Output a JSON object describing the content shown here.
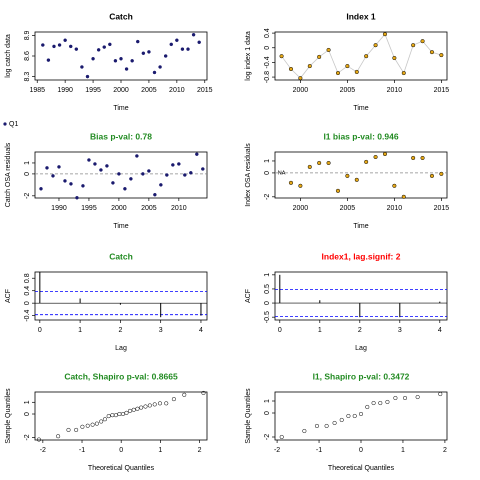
{
  "chart_data": [
    {
      "type": "line",
      "title": "Catch",
      "title_color": "#000000",
      "xlabel": "Time",
      "ylabel": "log catch data",
      "x": [
        1986,
        1987,
        1988,
        1989,
        1990,
        1991,
        1992,
        1993,
        1994,
        1995,
        1996,
        1997,
        1998,
        1999,
        2000,
        2001,
        2002,
        2003,
        2004,
        2005,
        2006,
        2007,
        2008,
        2009,
        2010,
        2011,
        2012,
        2013,
        2014
      ],
      "series": [
        {
          "values": [
            8.76,
            8.54,
            8.74,
            8.76,
            8.83,
            8.74,
            8.7,
            8.44,
            8.3,
            8.56,
            8.69,
            8.73,
            8.77,
            8.53,
            8.56,
            8.41,
            8.53,
            8.81,
            8.64,
            8.66,
            8.36,
            8.44,
            8.6,
            8.77,
            8.83,
            8.7,
            8.7,
            8.91,
            8.8
          ],
          "color": "#1a1a6e",
          "connect": false,
          "open": false
        }
      ],
      "xlim": [
        1984.6,
        2015.4
      ],
      "ylim": [
        8.25,
        8.95
      ],
      "xticks": [
        1985,
        1990,
        1995,
        2000,
        2005,
        2010,
        2015
      ],
      "yticks": [
        8.3,
        8.6,
        8.9
      ]
    },
    {
      "type": "line",
      "title": "Index 1",
      "title_color": "#000000",
      "xlabel": "Time",
      "ylabel": "log index 1 data",
      "x": [
        1998,
        1999,
        2000,
        2001,
        2002,
        2003,
        2004,
        2005,
        2006,
        2007,
        2008,
        2009,
        2010,
        2011,
        2012,
        2013,
        2014,
        2015
      ],
      "series": [
        {
          "values": [
            -0.23,
            -0.58,
            -0.83,
            -0.5,
            -0.25,
            -0.06,
            -0.69,
            -0.5,
            -0.66,
            -0.23,
            0.07,
            0.37,
            -0.28,
            -0.69,
            0.07,
            0.18,
            -0.12,
            -0.2
          ],
          "color": "#e6a817",
          "connect": true,
          "open": true
        }
      ],
      "xlim": [
        1997.3,
        2015.6
      ],
      "ylim": [
        -0.88,
        0.43
      ],
      "xticks": [
        2000,
        2005,
        2010,
        2015
      ],
      "yticks": [
        0.4,
        0,
        -0.4,
        -0.8
      ]
    },
    {
      "type": "line",
      "title": "Bias p-val: 0.78",
      "title_color": "#228b22",
      "xlabel": "Time",
      "ylabel": "Catch OSA residuals",
      "legend": "outside-top-left",
      "hline": 0,
      "x": [
        1987,
        1988,
        1989,
        1990,
        1991,
        1992,
        1993,
        1994,
        1995,
        1996,
        1997,
        1998,
        1999,
        2000,
        2001,
        2002,
        2003,
        2004,
        2005,
        2006,
        2007,
        2008,
        2009,
        2010,
        2011,
        2012,
        2013,
        2014
      ],
      "series": [
        {
          "name": "Q1",
          "values": [
            -1.36,
            0.55,
            -0.18,
            0.64,
            -0.64,
            -0.91,
            -2.18,
            -1.09,
            1.27,
            0.91,
            0.36,
            0.73,
            -0.82,
            0,
            -1.36,
            -0.45,
            1.64,
            0,
            0.27,
            -1.9,
            -1,
            -0.1,
            0.82,
            0.91,
            -0.1,
            0.1,
            1.8,
            0.45
          ],
          "color": "#1a1a6e",
          "connect": false,
          "open": false
        }
      ],
      "xlim": [
        1986,
        2014.7
      ],
      "ylim": [
        -2.2,
        2.0
      ],
      "xticks": [
        1990,
        1995,
        2000,
        2005,
        2010
      ],
      "yticks": [
        1,
        0,
        -2
      ]
    },
    {
      "type": "line",
      "title": "I1 bias p-val: 0.946",
      "title_color": "#228b22",
      "xlabel": "Time",
      "ylabel": "Index OSA residuals",
      "hline": 0,
      "annotations": [
        {
          "text": "NA",
          "x": 1998,
          "y": 0
        }
      ],
      "x": [
        1998,
        1999,
        2000,
        2001,
        2002,
        2003,
        2004,
        2005,
        2006,
        2007,
        2008,
        2009,
        2010,
        2011,
        2012,
        2013,
        2014,
        2015
      ],
      "series": [
        {
          "values": [
            null,
            -0.83,
            -1.08,
            0.5,
            0.83,
            0.83,
            -1.5,
            -0.25,
            -0.58,
            0.92,
            1.33,
            1.58,
            -1.08,
            -2,
            1.25,
            1.25,
            -0.25,
            -0.08
          ],
          "color": "#e6a817",
          "connect": false,
          "open": true
        }
      ],
      "xlim": [
        1997.3,
        2015.6
      ],
      "ylim": [
        -2.1,
        1.75
      ],
      "xticks": [
        2000,
        2005,
        2010,
        2015
      ],
      "yticks": [
        1,
        0,
        -2
      ]
    },
    {
      "type": "acf",
      "title": "Catch",
      "title_color": "#228b22",
      "xlabel": "Lag",
      "ylabel": "ACF",
      "hline": 0,
      "x": [
        0,
        1,
        2,
        3,
        4
      ],
      "series": [
        {
          "values": [
            1,
            0.15,
            -0.05,
            -0.45,
            -0.4
          ],
          "color": "#000000"
        }
      ],
      "ci": [
        -0.37,
        0.37
      ],
      "ci_color": "#0000ff",
      "xlim": [
        -0.12,
        4.15
      ],
      "ylim": [
        -0.54,
        1.0
      ],
      "xticks": [
        0,
        1,
        2,
        3,
        4
      ],
      "yticks": [
        0.8,
        0.4,
        0,
        -0.4
      ]
    },
    {
      "type": "acf",
      "title": "Index1, lag.signif: 2",
      "title_color": "#ff0000",
      "xlabel": "Lag",
      "ylabel": "ACF",
      "hline": 0,
      "x": [
        0,
        1,
        2,
        3,
        4
      ],
      "series": [
        {
          "values": [
            1,
            0.1,
            -0.5,
            -0.5,
            0.05
          ],
          "color": "#000000"
        }
      ],
      "ci": [
        -0.475,
        0.475
      ],
      "ci_color": "#0000ff",
      "xlim": [
        -0.12,
        4.18
      ],
      "ylim": [
        -0.6,
        1.1
      ],
      "xticks": [
        0,
        1,
        2,
        3,
        4
      ],
      "yticks": [
        1,
        0.5,
        0,
        -0.5
      ]
    },
    {
      "type": "scatter",
      "title": "Catch, Shapiro p-val: 0.8665",
      "title_color": "#228b22",
      "xlabel": "Theoretical Quantiles",
      "ylabel": "Sample Quantiles",
      "x": [
        -2.1,
        -1.61,
        -1.345,
        -1.15,
        -0.99,
        -0.855,
        -0.73,
        -0.62,
        -0.51,
        -0.415,
        -0.32,
        -0.225,
        -0.135,
        -0.045,
        0.045,
        0.135,
        0.225,
        0.32,
        0.415,
        0.51,
        0.62,
        0.73,
        0.855,
        0.99,
        1.15,
        1.345,
        1.61,
        2.1
      ],
      "series": [
        {
          "values": [
            -2.18,
            -1.9,
            -1.36,
            -1.36,
            -1.09,
            -1,
            -0.91,
            -0.82,
            -0.64,
            -0.45,
            -0.18,
            -0.1,
            -0.1,
            0,
            0,
            0.1,
            0.27,
            0.36,
            0.45,
            0.55,
            0.64,
            0.73,
            0.82,
            0.91,
            0.91,
            1.27,
            1.64,
            1.8
          ],
          "color": "#000000",
          "open": true
        }
      ],
      "xlim": [
        -2.2,
        2.19
      ],
      "ylim": [
        -2.22,
        1.88
      ],
      "xticks": [
        -2,
        -1,
        0,
        1,
        2
      ],
      "yticks": [
        1,
        0,
        -2
      ]
    },
    {
      "type": "scatter",
      "title": "I1, Shapiro p-val: 0.3472",
      "title_color": "#228b22",
      "xlabel": "Theoretical Quantiles",
      "ylabel": "Sample Quantiles",
      "x": [
        -1.89,
        -1.35,
        -1.05,
        -0.82,
        -0.63,
        -0.46,
        -0.3,
        -0.15,
        0,
        0.15,
        0.3,
        0.46,
        0.63,
        0.82,
        1.05,
        1.35,
        1.89
      ],
      "series": [
        {
          "values": [
            -2,
            -1.5,
            -1.08,
            -1.08,
            -0.83,
            -0.58,
            -0.25,
            -0.25,
            -0.08,
            0.5,
            0.83,
            0.83,
            0.92,
            1.25,
            1.25,
            1.33,
            1.58
          ],
          "color": "#000000",
          "open": true
        }
      ],
      "xlim": [
        -2.05,
        2.05
      ],
      "ylim": [
        -2.25,
        1.75
      ],
      "xticks": [
        -2,
        -1,
        0,
        1,
        2
      ],
      "yticks": [
        1,
        0,
        -2
      ]
    }
  ]
}
